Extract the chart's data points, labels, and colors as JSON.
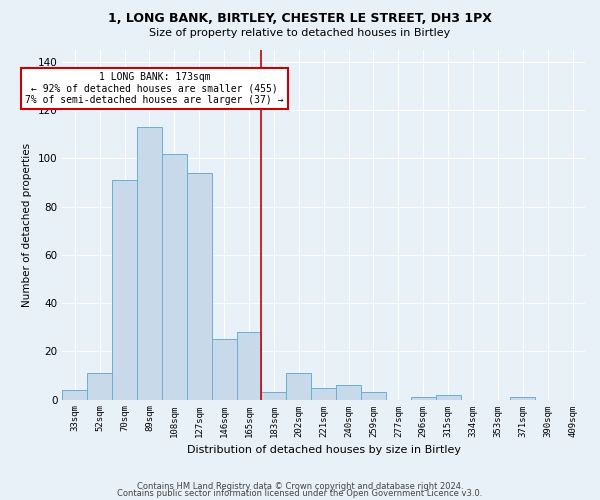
{
  "title1": "1, LONG BANK, BIRTLEY, CHESTER LE STREET, DH3 1PX",
  "title2": "Size of property relative to detached houses in Birtley",
  "xlabel": "Distribution of detached houses by size in Birtley",
  "ylabel": "Number of detached properties",
  "bin_labels": [
    "33sqm",
    "52sqm",
    "70sqm",
    "89sqm",
    "108sqm",
    "127sqm",
    "146sqm",
    "165sqm",
    "183sqm",
    "202sqm",
    "221sqm",
    "240sqm",
    "259sqm",
    "277sqm",
    "296sqm",
    "315sqm",
    "334sqm",
    "353sqm",
    "371sqm",
    "390sqm",
    "409sqm"
  ],
  "bar_heights": [
    4,
    11,
    91,
    113,
    102,
    94,
    25,
    28,
    3,
    11,
    5,
    6,
    3,
    0,
    1,
    2,
    0,
    0,
    1,
    0,
    0
  ],
  "bar_color": "#c8daea",
  "bar_edge_color": "#6aaed6",
  "vline_x": 7.5,
  "vline_color": "#cc0000",
  "annotation_text": "1 LONG BANK: 173sqm\n← 92% of detached houses are smaller (455)\n7% of semi-detached houses are larger (37) →",
  "annotation_box_color": "#ffffff",
  "annotation_box_edge": "#cc0000",
  "background_color": "#e8f0f8",
  "ylim": [
    0,
    145
  ],
  "yticks": [
    0,
    20,
    40,
    60,
    80,
    100,
    120,
    140
  ],
  "footer1": "Contains HM Land Registry data © Crown copyright and database right 2024.",
  "footer2": "Contains public sector information licensed under the Open Government Licence v3.0."
}
